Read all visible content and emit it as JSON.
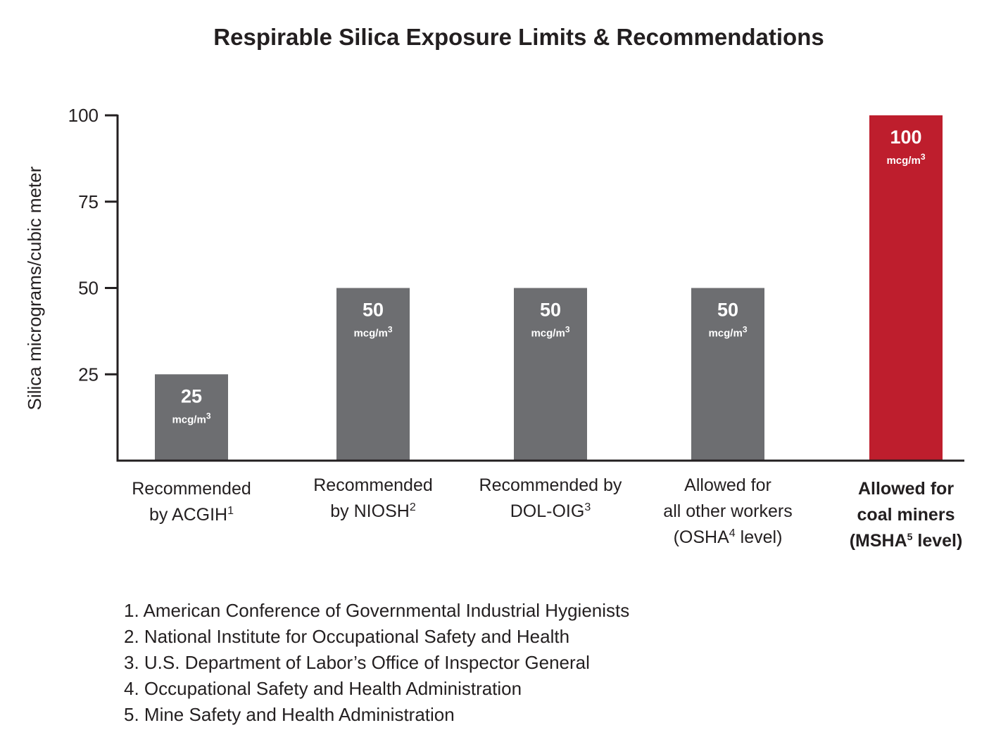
{
  "chart_data": {
    "type": "bar",
    "title": "Respirable Silica Exposure Limits & Recommendations",
    "ylabel": "Silica micrograms/cubic meter",
    "xlabel": "",
    "ylim": [
      0,
      100
    ],
    "yticks": [
      25,
      50,
      75,
      100
    ],
    "categories": [
      {
        "lines": [
          [
            "Recommended"
          ],
          [
            "by ACGIH",
            "1"
          ]
        ],
        "highlight": false
      },
      {
        "lines": [
          [
            "Recommended"
          ],
          [
            "by NIOSH",
            "2"
          ]
        ],
        "highlight": false
      },
      {
        "lines": [
          [
            "Recommended by"
          ],
          [
            "DOL-OIG",
            "3"
          ]
        ],
        "highlight": false
      },
      {
        "lines": [
          [
            "Allowed for"
          ],
          [
            "all other workers"
          ],
          [
            "(OSHA",
            "4",
            " level)"
          ]
        ],
        "highlight": false
      },
      {
        "lines": [
          [
            "Allowed for"
          ],
          [
            "coal miners"
          ],
          [
            "(MSHA",
            "5",
            " level)"
          ]
        ],
        "highlight": true
      }
    ],
    "values": [
      25,
      50,
      50,
      50,
      100
    ],
    "value_labels": [
      "25",
      "50",
      "50",
      "50",
      "100"
    ],
    "unit": {
      "base": "mcg/m",
      "sup": "3"
    },
    "colors": {
      "default": "#6d6e71",
      "highlight": "#be1e2d",
      "axis": "#231f20"
    }
  },
  "footnotes": [
    "1. American Conference of Governmental Industrial Hygienists",
    "2. National Institute for Occupational Safety and Health",
    "3. U.S. Department of Labor’s Office of Inspector General",
    "4. Occupational Safety and Health Administration",
    "5. Mine Safety and Health Administration"
  ]
}
